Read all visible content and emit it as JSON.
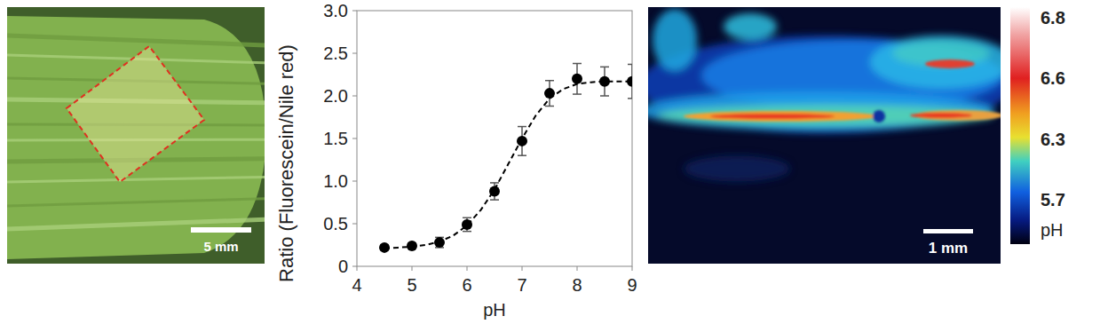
{
  "chart_data": {
    "type": "scatter",
    "x_label": "pH",
    "y_label": "Ratio (Fluorescein/Nile red)",
    "xlim": [
      4,
      9
    ],
    "xticks": [
      4,
      5,
      6,
      7,
      8,
      9
    ],
    "ylim": [
      0,
      3
    ],
    "yticks": [
      {
        "value": 0,
        "label": "0"
      },
      {
        "value": 0.5,
        "label": "0.5"
      },
      {
        "value": 1,
        "label": "1.0"
      },
      {
        "value": 1.5,
        "label": "1.5"
      },
      {
        "value": 2,
        "label": "2.0"
      },
      {
        "value": 2.5,
        "label": "2.5"
      },
      {
        "value": 3,
        "label": "3.0"
      }
    ],
    "grid": false,
    "series": [
      {
        "type": "scatter",
        "marker": "circle",
        "color": "#000000",
        "x": [
          4.5,
          5,
          5.5,
          6,
          6.5,
          7,
          7.5,
          8,
          8.5,
          9
        ],
        "values": [
          0.22,
          0.24,
          0.28,
          0.49,
          0.88,
          1.47,
          2.03,
          2.2,
          2.17,
          2.17
        ],
        "errors": [
          0.03,
          0.03,
          0.06,
          0.08,
          0.1,
          0.17,
          0.15,
          0.18,
          0.17,
          0.2
        ]
      },
      {
        "type": "line",
        "line_style": "dashed",
        "color": "#000000",
        "x": [
          4.5,
          4.75,
          5,
          5.25,
          5.5,
          5.75,
          6,
          6.25,
          6.5,
          6.75,
          7,
          7.25,
          7.5,
          7.75,
          8,
          8.25,
          8.5,
          8.75,
          9
        ],
        "values": [
          0.21,
          0.22,
          0.23,
          0.25,
          0.29,
          0.36,
          0.48,
          0.66,
          0.9,
          1.2,
          1.5,
          1.77,
          1.97,
          2.08,
          2.14,
          2.16,
          2.17,
          2.17,
          2.17
        ]
      }
    ]
  },
  "leaf_photo": {
    "scale_label": "5 mm"
  },
  "ph_map": {
    "scale_label": "1 mm",
    "colorbar": {
      "ticks": [
        6.8,
        6.6,
        6.3,
        5.7
      ],
      "label": "pH"
    }
  }
}
